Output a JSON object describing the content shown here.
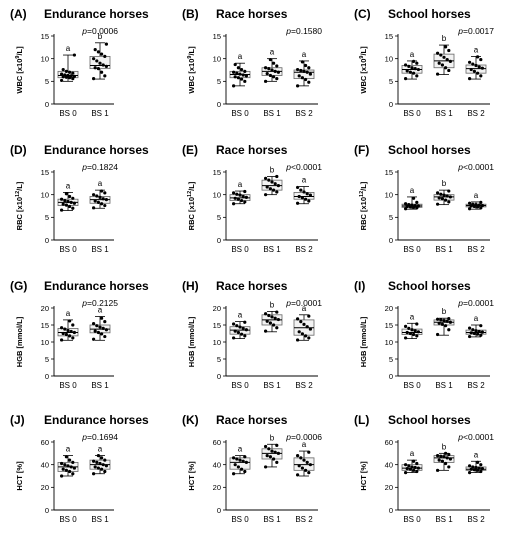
{
  "figure": {
    "colors": {
      "ink": "#000000",
      "box_light": "#f2f2f2",
      "box_dark": "#bfbfbf",
      "grid": "#999999",
      "point": "#000000"
    }
  },
  "chart_data": [
    {
      "letter": "(A)",
      "title": "Endurance horses",
      "pvalue": "p=0.0006",
      "type": "box",
      "ylabel": "WBC [x10^9/L]",
      "unit_exp": "9",
      "ylim": [
        0,
        15
      ],
      "yticks": [
        0,
        5,
        10,
        15
      ],
      "categories": [
        "BS 0",
        "BS 1"
      ],
      "sig_letters": [
        "a",
        "b"
      ],
      "boxes": [
        {
          "min": 5,
          "q1": 5.8,
          "median": 6.3,
          "q3": 7.2,
          "max": 10.8,
          "fill": "light"
        },
        {
          "min": 5.5,
          "q1": 7.8,
          "median": 8.5,
          "q3": 10.5,
          "max": 13.5,
          "fill": "light"
        }
      ],
      "points": [
        [
          5.2,
          5.6,
          5.8,
          5.9,
          6,
          6.1,
          6.2,
          6.3,
          6.4,
          6.6,
          6.8,
          7,
          7.2,
          7.6,
          10.8
        ],
        [
          5.6,
          6.2,
          7,
          7.8,
          8,
          8.3,
          8.6,
          9,
          9.5,
          10,
          10.5,
          11,
          11.5,
          12,
          13.2
        ]
      ]
    },
    {
      "letter": "(B)",
      "title": "Race horses",
      "pvalue": "p=0.1580",
      "type": "box",
      "ylabel": "WBC [x10^9/L]",
      "unit_exp": "9",
      "ylim": [
        0,
        15
      ],
      "yticks": [
        0,
        5,
        10,
        15
      ],
      "categories": [
        "BS 0",
        "BS 1",
        "BS 2"
      ],
      "sig_letters": [
        "a",
        "a",
        "a"
      ],
      "boxes": [
        {
          "min": 4,
          "q1": 5.8,
          "median": 6.5,
          "q3": 7.2,
          "max": 9,
          "fill": "light"
        },
        {
          "min": 5,
          "q1": 6.3,
          "median": 7.2,
          "q3": 8,
          "max": 10,
          "fill": "light"
        },
        {
          "min": 4,
          "q1": 5.6,
          "median": 7,
          "q3": 7.5,
          "max": 9.5,
          "fill": "light"
        }
      ],
      "points": [
        [
          4,
          5,
          5.5,
          5.8,
          6,
          6.2,
          6.4,
          6.6,
          6.8,
          7,
          7.2,
          7.6,
          8,
          8.7
        ],
        [
          5,
          5.6,
          6,
          6.3,
          6.7,
          7,
          7.2,
          7.5,
          7.8,
          8,
          8.4,
          9,
          9.8
        ],
        [
          4,
          4.8,
          5.4,
          5.8,
          6.2,
          6.6,
          7,
          7.2,
          7.4,
          7.6,
          8,
          8.5,
          9.3
        ]
      ]
    },
    {
      "letter": "(C)",
      "title": "School horses",
      "pvalue": "p=0.0017",
      "type": "box",
      "ylabel": "WBC [x10^9/L]",
      "unit_exp": "9",
      "ylim": [
        0,
        15
      ],
      "yticks": [
        0,
        5,
        10,
        15
      ],
      "categories": [
        "BS 0",
        "BS 1",
        "BS 2"
      ],
      "sig_letters": [
        "a",
        "b",
        "a"
      ],
      "boxes": [
        {
          "min": 5.5,
          "q1": 6.8,
          "median": 7.6,
          "q3": 8.5,
          "max": 9.5,
          "fill": "light"
        },
        {
          "min": 6.5,
          "q1": 8,
          "median": 9.5,
          "q3": 11,
          "max": 13,
          "fill": "light"
        },
        {
          "min": 5.5,
          "q1": 6.8,
          "median": 7.8,
          "q3": 8.6,
          "max": 10.5,
          "fill": "light"
        }
      ],
      "points": [
        [
          5.6,
          6.2,
          6.8,
          7,
          7.3,
          7.6,
          7.8,
          8,
          8.3,
          8.6,
          9,
          9.4
        ],
        [
          6.6,
          7.4,
          8,
          8.6,
          9,
          9.4,
          9.8,
          10.3,
          10.8,
          11.2,
          11.8,
          12.6
        ],
        [
          5.6,
          6.2,
          6.8,
          7.2,
          7.6,
          7.9,
          8.2,
          8.5,
          8.8,
          9.2,
          9.8,
          10.4
        ]
      ]
    },
    {
      "letter": "(D)",
      "title": "Endurance horses",
      "pvalue": "p=0.1824",
      "type": "box",
      "ylabel": "RBC [x10^12/L]",
      "unit_exp": "12",
      "ylim": [
        0,
        15
      ],
      "yticks": [
        0,
        5,
        10,
        15
      ],
      "categories": [
        "BS 0",
        "BS 1"
      ],
      "sig_letters": [
        "a",
        "a"
      ],
      "boxes": [
        {
          "min": 6.5,
          "q1": 7.6,
          "median": 8.3,
          "q3": 9,
          "max": 10.5,
          "fill": "light"
        },
        {
          "min": 7,
          "q1": 8.1,
          "median": 8.9,
          "q3": 9.6,
          "max": 11,
          "fill": "light"
        }
      ],
      "points": [
        [
          6.6,
          7,
          7.4,
          7.7,
          7.9,
          8.1,
          8.3,
          8.5,
          8.7,
          9,
          9.2,
          9.6,
          10.2
        ],
        [
          7.1,
          7.6,
          8,
          8.3,
          8.6,
          8.9,
          9.1,
          9.4,
          9.7,
          10,
          10.4,
          10.8
        ]
      ]
    },
    {
      "letter": "(E)",
      "title": "Race horses",
      "pvalue": "p<0.0001",
      "type": "box",
      "ylabel": "RBC [x10^12/L]",
      "unit_exp": "12",
      "ylim": [
        0,
        15
      ],
      "yticks": [
        0,
        5,
        10,
        15
      ],
      "categories": [
        "BS 0",
        "BS 1",
        "BS 2"
      ],
      "sig_letters": [
        "a",
        "b",
        "a"
      ],
      "boxes": [
        {
          "min": 8,
          "q1": 8.7,
          "median": 9.3,
          "q3": 10,
          "max": 10.8,
          "fill": "light"
        },
        {
          "min": 10,
          "q1": 11,
          "median": 12,
          "q3": 13.2,
          "max": 14,
          "fill": "light"
        },
        {
          "min": 8,
          "q1": 9,
          "median": 9.6,
          "q3": 10.5,
          "max": 11.8,
          "fill": "light"
        }
      ],
      "points": [
        [
          8,
          8.4,
          8.7,
          9,
          9.2,
          9.4,
          9.6,
          9.9,
          10.1,
          10.4,
          10.7
        ],
        [
          10,
          10.6,
          11,
          11.3,
          11.7,
          12,
          12.4,
          12.8,
          13.2,
          13.6,
          14
        ],
        [
          8.1,
          8.6,
          9,
          9.3,
          9.6,
          9.9,
          10.2,
          10.6,
          11,
          11.6
        ]
      ]
    },
    {
      "letter": "(F)",
      "title": "School horses",
      "pvalue": "p<0.0001",
      "type": "box",
      "ylabel": "RBC [x10^12/L]",
      "unit_exp": "12",
      "ylim": [
        0,
        15
      ],
      "yticks": [
        0,
        5,
        10,
        15
      ],
      "categories": [
        "BS 0",
        "BS 1",
        "BS 2"
      ],
      "sig_letters": [
        "a",
        "b",
        "a"
      ],
      "boxes": [
        {
          "min": 6.8,
          "q1": 7.2,
          "median": 7.5,
          "q3": 7.9,
          "max": 9.5,
          "fill": "dark"
        },
        {
          "min": 7.8,
          "q1": 8.8,
          "median": 9.5,
          "q3": 10,
          "max": 11,
          "fill": "light"
        },
        {
          "min": 6.8,
          "q1": 7.3,
          "median": 7.6,
          "q3": 7.9,
          "max": 8.4,
          "fill": "dark"
        }
      ],
      "points": [
        [
          6.9,
          7.1,
          7.2,
          7.3,
          7.4,
          7.5,
          7.6,
          7.7,
          7.8,
          8,
          8.3,
          9.2
        ],
        [
          7.9,
          8.4,
          8.8,
          9.1,
          9.3,
          9.5,
          9.7,
          9.9,
          10.1,
          10.4,
          10.8
        ],
        [
          6.9,
          7.1,
          7.3,
          7.4,
          7.5,
          7.6,
          7.7,
          7.8,
          7.9,
          8.1,
          8.3
        ]
      ]
    },
    {
      "letter": "(G)",
      "title": "Endurance horses",
      "pvalue": "p=0.2125",
      "type": "box",
      "ylabel": "HGB [mmol/L]",
      "unit_exp": "",
      "ylim": [
        0,
        20
      ],
      "yticks": [
        0,
        5,
        10,
        15,
        20
      ],
      "categories": [
        "BS 0",
        "BS 1"
      ],
      "sig_letters": [
        "a",
        "a"
      ],
      "boxes": [
        {
          "min": 10.5,
          "q1": 11.8,
          "median": 12.8,
          "q3": 14,
          "max": 16.5,
          "fill": "light"
        },
        {
          "min": 10.5,
          "q1": 12.7,
          "median": 13.8,
          "q3": 15,
          "max": 17.5,
          "fill": "light"
        }
      ],
      "points": [
        [
          10.6,
          11.2,
          11.8,
          12.2,
          12.5,
          12.8,
          13.1,
          13.4,
          13.8,
          14.2,
          15,
          16.2
        ],
        [
          10.8,
          11.6,
          12.4,
          12.8,
          13.2,
          13.6,
          14,
          14.4,
          14.8,
          15.4,
          16,
          17
        ]
      ]
    },
    {
      "letter": "(H)",
      "title": "Race horses",
      "pvalue": "p=0.0001",
      "type": "box",
      "ylabel": "HGB [mmol/L]",
      "unit_exp": "",
      "ylim": [
        0,
        20
      ],
      "yticks": [
        0,
        5,
        10,
        15,
        20
      ],
      "categories": [
        "BS 0",
        "BS 1",
        "BS 2"
      ],
      "sig_letters": [
        "a",
        "b",
        "a"
      ],
      "boxes": [
        {
          "min": 11,
          "q1": 12.3,
          "median": 13.5,
          "q3": 14.5,
          "max": 16,
          "fill": "light"
        },
        {
          "min": 13,
          "q1": 15,
          "median": 16.5,
          "q3": 18,
          "max": 19,
          "fill": "light"
        },
        {
          "min": 10.5,
          "q1": 12,
          "median": 14.2,
          "q3": 16.5,
          "max": 18,
          "fill": "light"
        }
      ],
      "points": [
        [
          11.2,
          11.8,
          12.3,
          12.8,
          13.2,
          13.6,
          14,
          14.4,
          14.8,
          15.3,
          15.8
        ],
        [
          13.2,
          14.2,
          15,
          15.6,
          16.1,
          16.6,
          17,
          17.4,
          17.8,
          18.3,
          18.8
        ],
        [
          10.6,
          11.2,
          11.8,
          12.4,
          13,
          13.8,
          14.5,
          15.2,
          16,
          16.8,
          17.6
        ]
      ]
    },
    {
      "letter": "(I)",
      "title": "School horses",
      "pvalue": "p=0.0001",
      "type": "box",
      "ylabel": "HGB [mmol/L]",
      "unit_exp": "",
      "ylim": [
        0,
        20
      ],
      "yticks": [
        0,
        5,
        10,
        15,
        20
      ],
      "categories": [
        "BS 0",
        "BS 1",
        "BS 2"
      ],
      "sig_letters": [
        "a",
        "b",
        "a"
      ],
      "boxes": [
        {
          "min": 11,
          "q1": 12.2,
          "median": 12.8,
          "q3": 13.8,
          "max": 15.5,
          "fill": "light"
        },
        {
          "min": 12,
          "q1": 15,
          "median": 15.8,
          "q3": 16.5,
          "max": 17,
          "fill": "light"
        },
        {
          "min": 11.5,
          "q1": 12.3,
          "median": 12.8,
          "q3": 13.5,
          "max": 15,
          "fill": "light"
        }
      ],
      "points": [
        [
          11.2,
          11.8,
          12.2,
          12.5,
          12.8,
          13,
          13.3,
          13.6,
          14,
          14.6,
          15.3
        ],
        [
          12.2,
          13.6,
          14.8,
          15.2,
          15.5,
          15.8,
          16.1,
          16.3,
          16.5,
          16.7,
          16.9
        ],
        [
          11.6,
          12,
          12.3,
          12.5,
          12.7,
          12.9,
          13.1,
          13.3,
          13.6,
          14.1,
          14.8
        ]
      ]
    },
    {
      "letter": "(J)",
      "title": "Endurance horses",
      "pvalue": "p=0.1694",
      "type": "box",
      "ylabel": "HCT [%]",
      "unit_exp": "",
      "ylim": [
        0,
        60
      ],
      "yticks": [
        0,
        20,
        40,
        60
      ],
      "categories": [
        "BS 0",
        "BS 1"
      ],
      "sig_letters": [
        "a",
        "a"
      ],
      "boxes": [
        {
          "min": 30,
          "q1": 34,
          "median": 38,
          "q3": 42,
          "max": 48,
          "fill": "light"
        },
        {
          "min": 32,
          "q1": 36,
          "median": 40,
          "q3": 44,
          "max": 48,
          "fill": "light"
        }
      ],
      "points": [
        [
          30,
          32,
          34,
          35,
          36,
          37,
          38,
          39,
          40,
          41,
          42,
          44,
          47
        ],
        [
          32,
          34,
          36,
          37,
          38,
          39,
          40,
          41,
          42,
          43,
          44,
          46,
          48
        ]
      ]
    },
    {
      "letter": "(K)",
      "title": "Race horses",
      "pvalue": "p=0.0006",
      "type": "box",
      "ylabel": "HCT [%]",
      "unit_exp": "",
      "ylim": [
        0,
        60
      ],
      "yticks": [
        0,
        20,
        40,
        60
      ],
      "categories": [
        "BS 0",
        "BS 1",
        "BS 2"
      ],
      "sig_letters": [
        "a",
        "b",
        "a"
      ],
      "boxes": [
        {
          "min": 32,
          "q1": 36,
          "median": 42,
          "q3": 46,
          "max": 48,
          "fill": "light"
        },
        {
          "min": 38,
          "q1": 45,
          "median": 50,
          "q3": 54,
          "max": 58,
          "fill": "light"
        },
        {
          "min": 30,
          "q1": 35,
          "median": 40,
          "q3": 46,
          "max": 52,
          "fill": "light"
        }
      ],
      "points": [
        [
          32,
          34,
          36,
          38,
          40,
          42,
          43,
          44,
          45,
          46,
          47
        ],
        [
          38,
          42,
          45,
          47,
          48,
          50,
          51,
          52,
          54,
          56,
          57
        ],
        [
          31,
          33,
          35,
          37,
          39,
          40,
          42,
          44,
          46,
          48,
          51
        ]
      ]
    },
    {
      "letter": "(L)",
      "title": "School horses",
      "pvalue": "p<0.0001",
      "type": "box",
      "ylabel": "HCT [%]",
      "unit_exp": "",
      "ylim": [
        0,
        60
      ],
      "yticks": [
        0,
        20,
        40,
        60
      ],
      "categories": [
        "BS 0",
        "BS 1",
        "BS 2"
      ],
      "sig_letters": [
        "a",
        "b",
        "a"
      ],
      "boxes": [
        {
          "min": 33,
          "q1": 35,
          "median": 37,
          "q3": 40,
          "max": 44,
          "fill": "light"
        },
        {
          "min": 35,
          "q1": 42,
          "median": 46,
          "q3": 48,
          "max": 50,
          "fill": "light"
        },
        {
          "min": 33,
          "q1": 35,
          "median": 36,
          "q3": 38,
          "max": 43,
          "fill": "light"
        }
      ],
      "points": [
        [
          33,
          34,
          35,
          36,
          36.5,
          37,
          37.5,
          38,
          39,
          40,
          41,
          43
        ],
        [
          35,
          38,
          41,
          43,
          44,
          45,
          46,
          47,
          47.5,
          48,
          49,
          50
        ],
        [
          33,
          34,
          35,
          35.5,
          36,
          36.5,
          37,
          37.5,
          38,
          39,
          40,
          42
        ]
      ]
    }
  ]
}
